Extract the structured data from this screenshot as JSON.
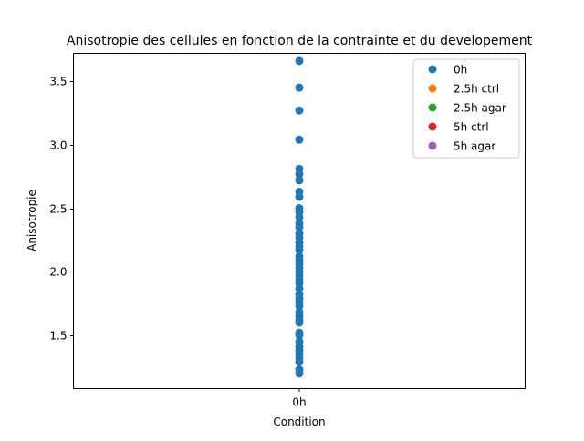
{
  "chart_data": {
    "type": "scatter",
    "title": "Anisotropie des cellules en fonction de la contrainte et du developement",
    "xlabel": "Condition",
    "ylabel": "Anisotropie",
    "categories": [
      "0h"
    ],
    "ylim": [
      1.08,
      3.72
    ],
    "yticks": [
      1.5,
      2.0,
      2.5,
      3.0,
      3.5
    ],
    "ytick_labels": [
      "1.5",
      "2.0",
      "2.5",
      "3.0",
      "3.5"
    ],
    "grid": false,
    "legend_position": "top-right",
    "series": [
      {
        "name": "0h",
        "color": "#1f77b4",
        "x": "0h",
        "values": [
          3.66,
          3.45,
          3.27,
          3.04,
          2.81,
          2.77,
          2.72,
          2.63,
          2.59,
          2.5,
          2.47,
          2.43,
          2.38,
          2.35,
          2.3,
          2.27,
          2.23,
          2.2,
          2.17,
          2.12,
          2.09,
          2.06,
          2.03,
          2.0,
          1.97,
          1.94,
          1.91,
          1.87,
          1.82,
          1.79,
          1.76,
          1.73,
          1.68,
          1.65,
          1.62,
          1.6,
          1.52,
          1.5,
          1.45,
          1.41,
          1.38,
          1.35,
          1.32,
          1.29,
          1.23,
          1.2
        ]
      },
      {
        "name": "2.5h ctrl",
        "color": "#ff7f0e",
        "x": "2.5h ctrl",
        "values": []
      },
      {
        "name": "2.5h agar",
        "color": "#2ca02c",
        "x": "2.5h agar",
        "values": []
      },
      {
        "name": "5h ctrl",
        "color": "#d62728",
        "x": "5h ctrl",
        "values": []
      },
      {
        "name": "5h agar",
        "color": "#9467bd",
        "x": "5h agar",
        "values": []
      }
    ]
  }
}
